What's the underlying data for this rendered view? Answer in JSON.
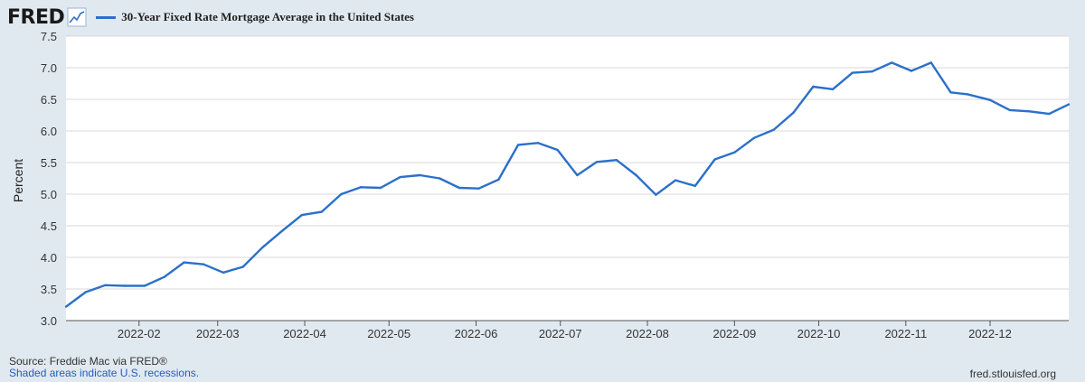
{
  "header": {
    "logo": "FRED",
    "legend_label": "30-Year Fixed Rate Mortgage Average in the United States",
    "line_color": "#2b70c9"
  },
  "footer": {
    "source": "Source: Freddie Mac via FRED®",
    "recession_note": "Shaded areas indicate U.S. recessions.",
    "site": "fred.stlouisfed.org"
  },
  "chart_data": {
    "type": "line",
    "title": "",
    "xlabel": "",
    "ylabel": "Percent",
    "ylim": [
      3.0,
      7.5
    ],
    "yticks": [
      "3.0",
      "3.5",
      "4.0",
      "4.5",
      "5.0",
      "5.5",
      "6.0",
      "6.5",
      "7.0",
      "7.5"
    ],
    "xticks": [
      {
        "label": "2022-02",
        "date": "2022-02-01"
      },
      {
        "label": "2022-03",
        "date": "2022-03-01"
      },
      {
        "label": "2022-04",
        "date": "2022-04-01"
      },
      {
        "label": "2022-05",
        "date": "2022-05-01"
      },
      {
        "label": "2022-06",
        "date": "2022-06-01"
      },
      {
        "label": "2022-07",
        "date": "2022-07-01"
      },
      {
        "label": "2022-08",
        "date": "2022-08-01"
      },
      {
        "label": "2022-09",
        "date": "2022-09-01"
      },
      {
        "label": "2022-10",
        "date": "2022-10-01"
      },
      {
        "label": "2022-11",
        "date": "2022-11-01"
      },
      {
        "label": "2022-12",
        "date": "2022-12-01"
      }
    ],
    "x_range": [
      "2022-01-06",
      "2022-12-29"
    ],
    "grid": true,
    "series": [
      {
        "name": "30-Year Fixed Rate Mortgage Average in the United States",
        "x": [
          "2022-01-06",
          "2022-01-13",
          "2022-01-20",
          "2022-01-27",
          "2022-02-03",
          "2022-02-10",
          "2022-02-17",
          "2022-02-24",
          "2022-03-03",
          "2022-03-10",
          "2022-03-17",
          "2022-03-24",
          "2022-03-31",
          "2022-04-07",
          "2022-04-14",
          "2022-04-21",
          "2022-04-28",
          "2022-05-05",
          "2022-05-12",
          "2022-05-19",
          "2022-05-26",
          "2022-06-02",
          "2022-06-09",
          "2022-06-16",
          "2022-06-23",
          "2022-06-30",
          "2022-07-07",
          "2022-07-14",
          "2022-07-21",
          "2022-07-28",
          "2022-08-04",
          "2022-08-11",
          "2022-08-18",
          "2022-08-25",
          "2022-09-01",
          "2022-09-08",
          "2022-09-15",
          "2022-09-22",
          "2022-09-29",
          "2022-10-06",
          "2022-10-13",
          "2022-10-20",
          "2022-10-27",
          "2022-11-03",
          "2022-11-10",
          "2022-11-17",
          "2022-11-23",
          "2022-12-01",
          "2022-12-08",
          "2022-12-15",
          "2022-12-22",
          "2022-12-29"
        ],
        "values": [
          3.22,
          3.45,
          3.56,
          3.55,
          3.55,
          3.69,
          3.92,
          3.89,
          3.76,
          3.85,
          4.16,
          4.42,
          4.67,
          4.72,
          5.0,
          5.11,
          5.1,
          5.27,
          5.3,
          5.25,
          5.1,
          5.09,
          5.23,
          5.78,
          5.81,
          5.7,
          5.3,
          5.51,
          5.54,
          5.3,
          4.99,
          5.22,
          5.13,
          5.55,
          5.66,
          5.89,
          6.02,
          6.29,
          6.7,
          6.66,
          6.92,
          6.94,
          7.08,
          6.95,
          7.08,
          6.61,
          6.58,
          6.49,
          6.33,
          6.31,
          6.27,
          6.42
        ]
      }
    ]
  }
}
